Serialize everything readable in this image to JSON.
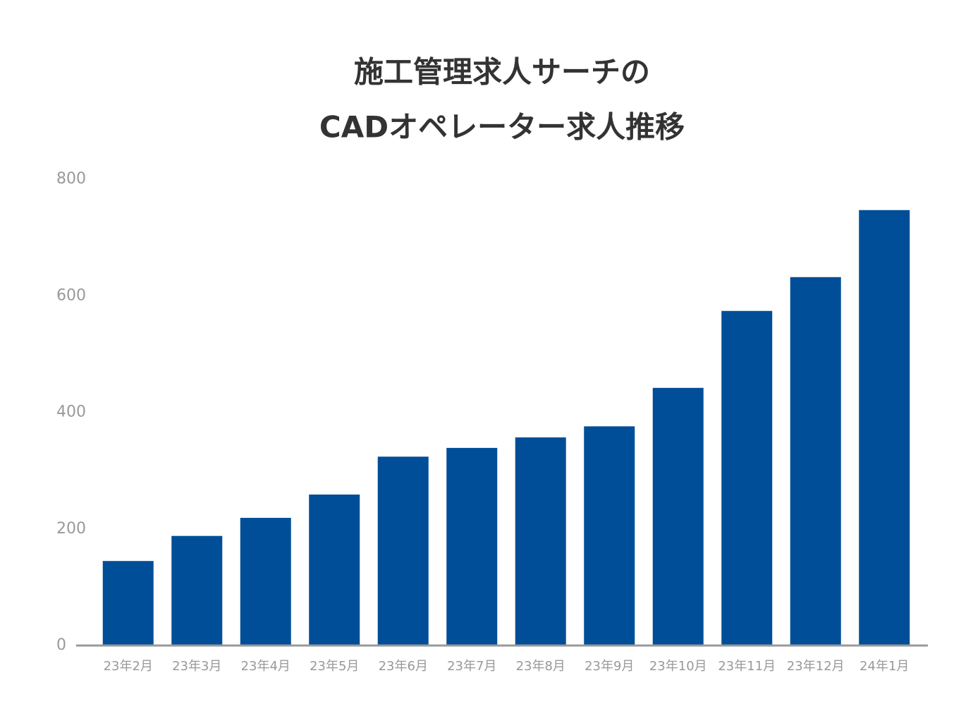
{
  "chart_data": {
    "type": "bar",
    "title": [
      "施工管理求人サーチの",
      "CADオペレーター求人推移"
    ],
    "categories": [
      "23年2月",
      "23年3月",
      "23年4月",
      "23年5月",
      "23年6月",
      "23年7月",
      "23年8月",
      "23年9月",
      "23年10月",
      "23年11月",
      "23年12月",
      "24年1月"
    ],
    "values": [
      145,
      188,
      219,
      259,
      324,
      339,
      357,
      376,
      442,
      574,
      632,
      747
    ],
    "color": "#004e98",
    "ylim": [
      0,
      800
    ],
    "yticks": [
      0,
      200,
      400,
      600,
      800
    ],
    "grid": false
  }
}
